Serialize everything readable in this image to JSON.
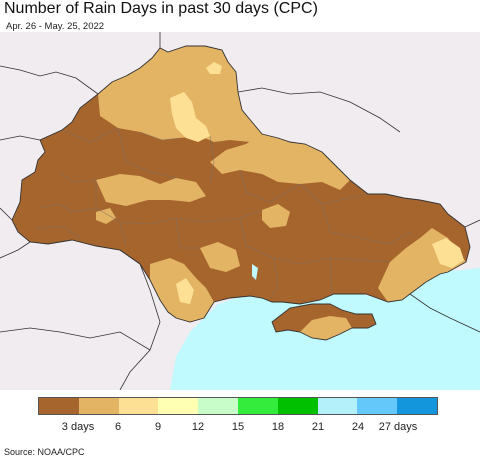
{
  "header": {
    "title": "Number of Rain Days in past 30 days (CPC)",
    "subtitle": "Apr. 26 - May. 25, 2022"
  },
  "legend": {
    "colors": [
      "#a5652d",
      "#e4b465",
      "#fde094",
      "#ffffb4",
      "#c8fcc8",
      "#34ec3c",
      "#00c000",
      "#b4f0fa",
      "#64c8fa",
      "#1496dc"
    ],
    "labels": [
      "3 days",
      "6",
      "9",
      "12",
      "15",
      "18",
      "21",
      "24",
      "27 days"
    ]
  },
  "map": {
    "land_color": "#f0ecf0",
    "sea_color": "#c0faff"
  },
  "footer": {
    "source": "Source: NOAA/CPC"
  }
}
